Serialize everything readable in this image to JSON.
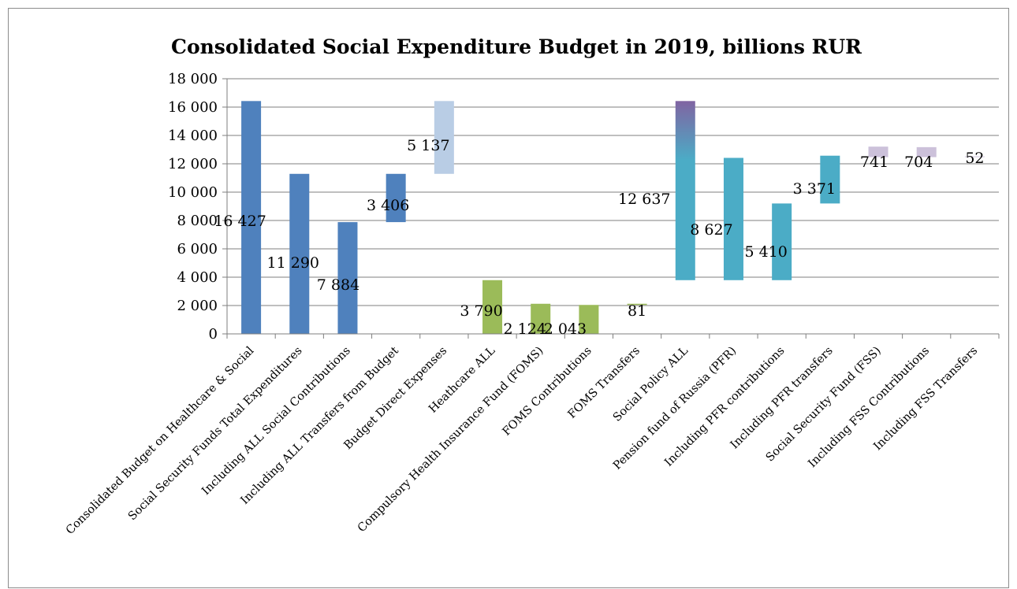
{
  "chart_data": {
    "type": "bar",
    "subtype": "floating-waterfall",
    "title": "Consolidated Social Expenditure Budget in 2019, billions RUR",
    "xlabel": "",
    "ylabel": "",
    "ylim": [
      0,
      18000
    ],
    "y_ticks": [
      "0",
      "2 000",
      "4 000",
      "6 000",
      "8 000",
      "10 000",
      "12 000",
      "14 000",
      "16 000",
      "18 000"
    ],
    "grid": true,
    "legend": "none",
    "categories": [
      "Consolidated Budget on Healthcare & Social",
      "Social Security Funds Total Expenditures",
      "Including ALL Social Contributions",
      "Including ALL Transfers from Budget",
      "Budget Direct Expenses",
      "Heathcare ALL",
      "Compulsory Health Insurance Fund (FOMS)",
      "FOMS Contributions",
      "FOMS Transfers",
      "Social Policy ALL",
      "Pension fund of Russia (PFR)",
      "Including PFR contributions",
      "Including PFR transfers",
      "Social Security Fund (FSS)",
      "Including FSS Contributions",
      "Including FSS Transfers"
    ],
    "values": [
      16427,
      11290,
      7884,
      3406,
      5137,
      3790,
      2124,
      2043,
      81,
      12637,
      8627,
      5410,
      3371,
      741,
      704,
      52
    ],
    "bases": [
      0,
      0,
      0,
      7884,
      11290,
      0,
      0,
      0,
      2043,
      3790,
      3790,
      3790,
      9200,
      12470,
      12470,
      12470
    ],
    "data_labels": [
      "16 427",
      "11 290",
      "7 884",
      "3 406",
      "5 137",
      "3 790",
      "2 124",
      "2 043",
      "81",
      "12 637",
      "8 627",
      "5 410",
      "3 371",
      "741",
      "704",
      "52"
    ],
    "colors": {
      "budget": "#4f81bd",
      "budget_light": "#b9cde5",
      "health": "#9bbb59",
      "social": "#4bacc6",
      "social_top": "#8064a2",
      "fss": "#ccc1da",
      "grid": "#7f7f7f",
      "axis": "#7f7f7f"
    },
    "bar_colors": [
      "budget",
      "budget",
      "budget",
      "budget",
      "budget_light",
      "health",
      "health",
      "health",
      "health",
      "social_gradient",
      "social",
      "social",
      "social",
      "fss",
      "fss",
      "fss"
    ]
  }
}
